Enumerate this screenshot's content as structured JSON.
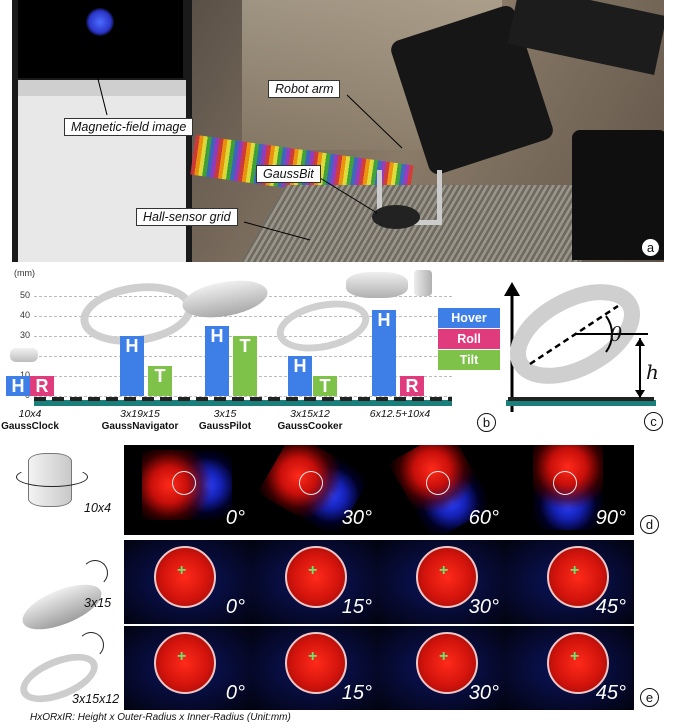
{
  "panel_a": {
    "callouts": [
      "Magnetic-field image",
      "Robot arm",
      "GaussBit",
      "Hall-sensor grid"
    ],
    "letter": "a"
  },
  "panel_b": {
    "unit": "(mm)",
    "y_ticks": [
      "50",
      "40",
      "30",
      "20",
      "10",
      "0"
    ],
    "legend": [
      {
        "label": "Hover",
        "color": "#3d7fe6"
      },
      {
        "label": "Roll",
        "color": "#e03b7c"
      },
      {
        "label": "Tilt",
        "color": "#7ec24a"
      }
    ],
    "devices": [
      {
        "dims": "10x4",
        "name": "GaussClock"
      },
      {
        "dims": "3x19x15",
        "name": "GaussNavigator"
      },
      {
        "dims": "3x15",
        "name": "GaussPilot"
      },
      {
        "dims": "3x15x12",
        "name": "GaussCooker"
      },
      {
        "dims": "6x12.5+10x4",
        "name": ""
      }
    ],
    "bars": [
      {
        "letter": "H",
        "kind": "Hover",
        "value": 10
      },
      {
        "letter": "R",
        "kind": "Roll",
        "value": 10
      },
      {
        "letter": "H",
        "kind": "Hover",
        "value": 30
      },
      {
        "letter": "T",
        "kind": "Tilt",
        "value": 15
      },
      {
        "letter": "H",
        "kind": "Hover",
        "value": 35
      },
      {
        "letter": "T",
        "kind": "Tilt",
        "value": 30
      },
      {
        "letter": "H",
        "kind": "Hover",
        "value": 20
      },
      {
        "letter": "T",
        "kind": "Tilt",
        "value": 10
      },
      {
        "letter": "H",
        "kind": "Hover",
        "value": 43
      },
      {
        "letter": "R",
        "kind": "Roll",
        "value": 10
      }
    ],
    "letter": "b"
  },
  "panel_c": {
    "theta": "θ",
    "h": "h",
    "letter": "c"
  },
  "panel_d": {
    "shape_label": "10x4",
    "angles": [
      "0°",
      "30°",
      "60°",
      "90°"
    ],
    "letter": "d"
  },
  "panel_e": {
    "rows": [
      {
        "shape_label": "3x15",
        "angles": [
          "0°",
          "15°",
          "30°",
          "45°"
        ]
      },
      {
        "shape_label": "3x15x12",
        "angles": [
          "0°",
          "15°",
          "30°",
          "45°"
        ]
      }
    ],
    "letter": "e"
  },
  "footnote": "HxORxIR:  Height x Outer-Radius x Inner-Radius (Unit:mm)"
}
